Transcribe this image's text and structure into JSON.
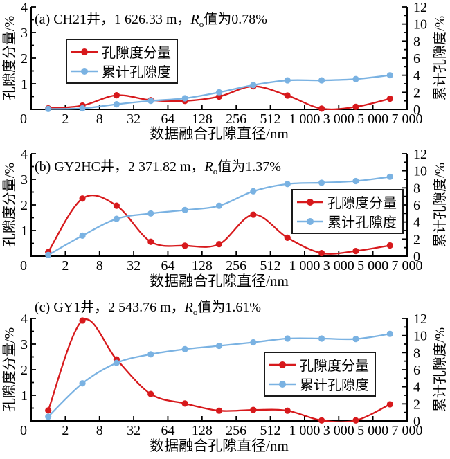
{
  "figure": {
    "x_axis_title": "数据融合孔隙直径/nm",
    "y_left_title": "孔隙度分量/%",
    "y_right_title": "累计孔隙度/%",
    "legend": [
      {
        "label": "孔隙度分量",
        "series": "component"
      },
      {
        "label": "累计孔隙度",
        "series": "cumulative"
      }
    ],
    "colors": {
      "component": "#d7191c",
      "cumulative": "#7ab2e2",
      "axis": "#000000"
    }
  },
  "chart_data": [
    {
      "type": "line",
      "panel": "a",
      "title": {
        "prefix": "(a) CH21井，1 626.33 m，",
        "r": "R",
        "r_sub": "o",
        "suffix": "值为0.78%"
      },
      "x_tick_labels": [
        "0",
        "2",
        "8",
        "32",
        "64",
        "128",
        "256",
        "512",
        "1 000",
        "3 000",
        "5 000",
        "7 000"
      ],
      "y_left_tick_labels": [
        "4",
        "3",
        "2",
        "1"
      ],
      "y_right_tick_labels": [
        "12",
        "10",
        "8",
        "6",
        "4",
        "2",
        "0"
      ],
      "y_left_range": [
        0,
        4
      ],
      "y_right_range": [
        0,
        12
      ],
      "grid": false,
      "series": [
        {
          "name": "孔隙度分量",
          "key": "component",
          "axis": "left",
          "values": [
            0.04,
            0.15,
            0.55,
            0.36,
            0.33,
            0.5,
            0.9,
            0.54,
            0.03,
            0.1,
            0.42
          ]
        },
        {
          "name": "累计孔隙度",
          "key": "cumulative",
          "axis": "right",
          "values": [
            0.05,
            0.12,
            0.6,
            1.0,
            1.3,
            2.0,
            2.85,
            3.4,
            3.4,
            3.55,
            4.0
          ]
        }
      ]
    },
    {
      "type": "line",
      "panel": "b",
      "title": {
        "prefix": "(b) GY2HC井，2 371.82 m，",
        "r": "R",
        "r_sub": "o",
        "suffix": "值为1.37%"
      },
      "x_tick_labels": [
        "0",
        "2",
        "8",
        "32",
        "64",
        "128",
        "256",
        "512",
        "1 000",
        "3 000",
        "5 000",
        "7 000"
      ],
      "y_left_tick_labels": [
        "4",
        "3",
        "2",
        "1"
      ],
      "y_right_tick_labels": [
        "12",
        "10",
        "8",
        "6",
        "4",
        "2",
        "0"
      ],
      "y_left_range": [
        0,
        4
      ],
      "y_right_range": [
        0,
        12
      ],
      "grid": false,
      "series": [
        {
          "name": "孔隙度分量",
          "key": "component",
          "axis": "left",
          "values": [
            0.16,
            2.25,
            1.97,
            0.56,
            0.41,
            0.47,
            1.62,
            0.72,
            0.12,
            0.2,
            0.42
          ]
        },
        {
          "name": "累计孔隙度",
          "key": "cumulative",
          "axis": "right",
          "values": [
            0.14,
            2.4,
            4.37,
            5.0,
            5.4,
            5.9,
            7.6,
            8.45,
            8.6,
            8.8,
            9.3
          ]
        }
      ]
    },
    {
      "type": "line",
      "panel": "c",
      "title": {
        "prefix": "(c) GY1井，2 543.76 m，",
        "r": "R",
        "r_sub": "o",
        "suffix": "值为1.61%"
      },
      "x_tick_labels": [
        "0",
        "2",
        "8",
        "32",
        "64",
        "128",
        "256",
        "512",
        "1 000",
        "3 000",
        "5 000",
        "7 000"
      ],
      "y_left_tick_labels": [
        "4",
        "3",
        "2",
        "1"
      ],
      "y_right_tick_labels": [
        "12",
        "10",
        "8",
        "6",
        "4",
        "2",
        "0"
      ],
      "y_left_range": [
        0,
        4
      ],
      "y_right_range": [
        0,
        12
      ],
      "grid": false,
      "series": [
        {
          "name": "孔隙度分量",
          "key": "component",
          "axis": "left",
          "values": [
            0.41,
            3.92,
            2.4,
            1.05,
            0.68,
            0.4,
            0.43,
            0.4,
            0.02,
            0.02,
            0.65
          ]
        },
        {
          "name": "累计孔隙度",
          "key": "cumulative",
          "axis": "right",
          "values": [
            0.5,
            4.4,
            6.8,
            7.8,
            8.4,
            8.8,
            9.2,
            9.65,
            9.65,
            9.6,
            10.2
          ]
        }
      ]
    }
  ]
}
